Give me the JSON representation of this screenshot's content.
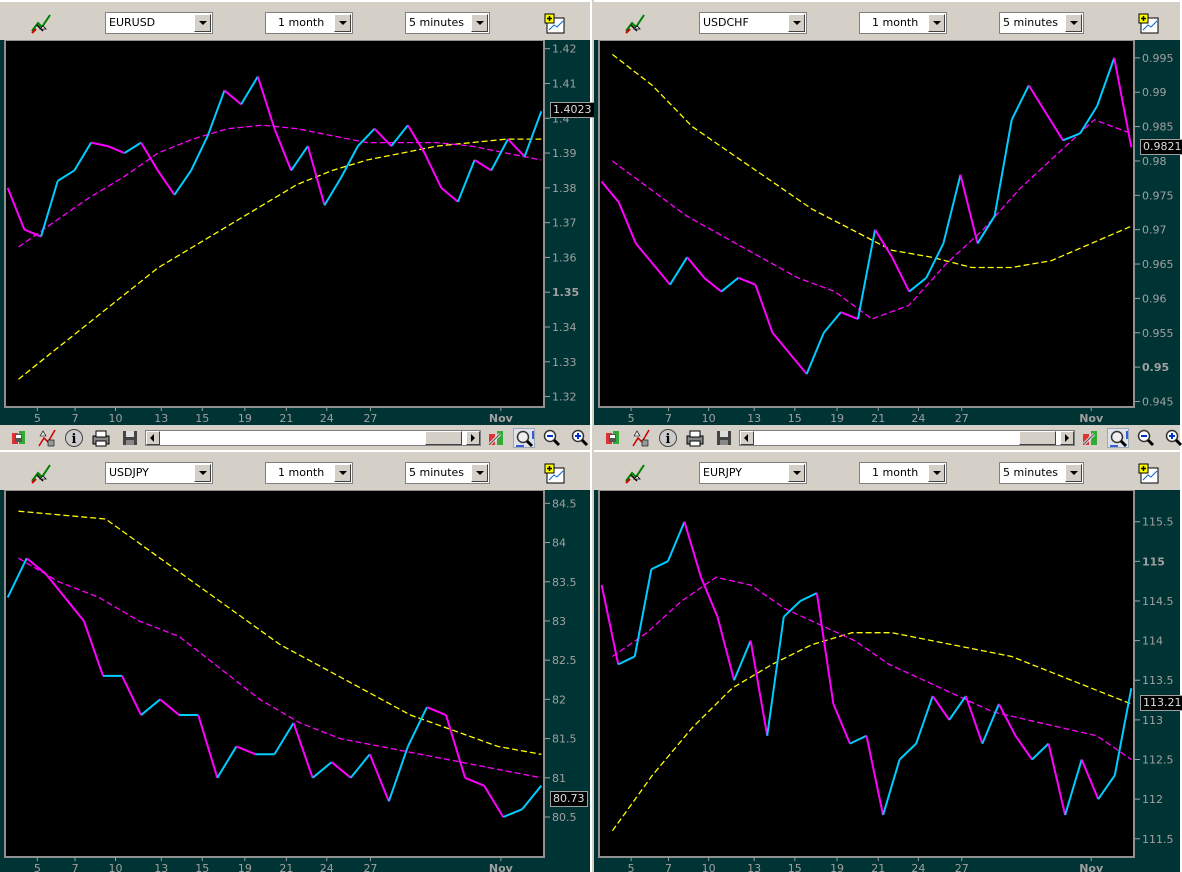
{
  "colors": {
    "background": "#003333",
    "plot": "#000000",
    "price_up": "#00ccff",
    "price_down": "#ff00ff",
    "ma_fast": "#ff00ff",
    "ma_slow": "#ffff00",
    "axis_text": "#a0a0a0"
  },
  "toolbar_icons": {
    "top": [
      "chart-wand-icon",
      "add-chart-icon"
    ],
    "bottom": [
      "candlestick-chart-icon",
      "indicators-icon",
      "info-icon",
      "print-icon",
      "save-icon",
      "properties-icon",
      "zoom-fit-icon",
      "zoom-out-icon",
      "zoom-in-icon"
    ]
  },
  "panels": [
    {
      "symbol": "EURUSD",
      "period": "1 month",
      "interval": "5 minutes",
      "last_price": "1.4023"
    },
    {
      "symbol": "USDCHF",
      "period": "1 month",
      "interval": "5 minutes",
      "last_price": "0.9821"
    },
    {
      "symbol": "USDJPY",
      "period": "1 month",
      "interval": "5 minutes",
      "last_price": "80.73"
    },
    {
      "symbol": "EURJPY",
      "period": "1 month",
      "interval": "5 minutes",
      "last_price": "113.21"
    }
  ],
  "chart_data": [
    {
      "type": "line",
      "title": "EURUSD",
      "x_tick_labels": [
        "5",
        "7",
        "10",
        "13",
        "15",
        "19",
        "21",
        "24",
        "27",
        "Nov"
      ],
      "ylim": [
        1.317,
        1.4225
      ],
      "y_ticks": [
        "1.32",
        "1.33",
        "1.34",
        "1.35",
        "1.36",
        "1.37",
        "1.38",
        "1.39",
        "1.4",
        "1.41",
        "1.42"
      ],
      "bold_tick": "1.35",
      "last": 1.4023,
      "price": [
        1.38,
        1.368,
        1.366,
        1.382,
        1.385,
        1.393,
        1.392,
        1.39,
        1.393,
        1.385,
        1.378,
        1.385,
        1.395,
        1.408,
        1.404,
        1.412,
        1.397,
        1.385,
        1.392,
        1.375,
        1.383,
        1.392,
        1.397,
        1.392,
        1.398,
        1.39,
        1.38,
        1.376,
        1.388,
        1.385,
        1.394,
        1.389,
        1.402
      ],
      "ma_fast": [
        1.363,
        1.37,
        1.377,
        1.383,
        1.39,
        1.394,
        1.397,
        1.398,
        1.397,
        1.395,
        1.393,
        1.393,
        1.393,
        1.392,
        1.39,
        1.388
      ],
      "ma_slow": [
        1.325,
        1.333,
        1.341,
        1.349,
        1.357,
        1.363,
        1.369,
        1.375,
        1.381,
        1.385,
        1.388,
        1.39,
        1.392,
        1.393,
        1.394,
        1.394
      ]
    },
    {
      "type": "line",
      "title": "USDCHF",
      "x_tick_labels": [
        "5",
        "7",
        "10",
        "13",
        "15",
        "19",
        "21",
        "24",
        "27",
        "Nov"
      ],
      "ylim": [
        0.9442,
        0.9976
      ],
      "y_ticks": [
        "0.945",
        "0.95",
        "0.955",
        "0.96",
        "0.965",
        "0.97",
        "0.975",
        "0.98",
        "0.985",
        "0.99",
        "0.995"
      ],
      "bold_tick": "0.95",
      "last": 0.9821,
      "price": [
        0.977,
        0.974,
        0.968,
        0.965,
        0.962,
        0.966,
        0.963,
        0.961,
        0.963,
        0.962,
        0.955,
        0.952,
        0.949,
        0.955,
        0.958,
        0.957,
        0.97,
        0.966,
        0.961,
        0.963,
        0.968,
        0.978,
        0.968,
        0.972,
        0.986,
        0.991,
        0.987,
        0.983,
        0.984,
        0.988,
        0.995,
        0.982
      ],
      "ma_fast": [
        0.98,
        0.976,
        0.972,
        0.969,
        0.966,
        0.963,
        0.961,
        0.957,
        0.959,
        0.965,
        0.97,
        0.976,
        0.981,
        0.986,
        0.984
      ],
      "ma_slow": [
        0.9955,
        0.991,
        0.985,
        0.981,
        0.977,
        0.973,
        0.97,
        0.967,
        0.966,
        0.9645,
        0.9645,
        0.9655,
        0.968,
        0.9705
      ]
    },
    {
      "type": "line",
      "title": "USDJPY",
      "x_tick_labels": [
        "5",
        "7",
        "10",
        "13",
        "15",
        "19",
        "21",
        "24",
        "27",
        "Nov"
      ],
      "ylim": [
        79.99,
        84.67
      ],
      "y_ticks": [
        "80.5",
        "81",
        "81.5",
        "82",
        "82.5",
        "83",
        "83.5",
        "84",
        "84.5"
      ],
      "bold_tick": "",
      "last": 80.73,
      "price": [
        83.3,
        83.8,
        83.6,
        83.3,
        83.0,
        82.3,
        82.3,
        81.8,
        82.0,
        81.8,
        81.8,
        81.0,
        81.4,
        81.3,
        81.3,
        81.7,
        81.0,
        81.2,
        81.0,
        81.3,
        80.7,
        81.4,
        81.9,
        81.8,
        81.0,
        80.9,
        80.5,
        80.6,
        80.9
      ],
      "ma_fast": [
        83.8,
        83.5,
        83.3,
        83.0,
        82.8,
        82.4,
        82.0,
        81.7,
        81.5,
        81.4,
        81.3,
        81.2,
        81.1,
        81.0
      ],
      "ma_slow": [
        84.4,
        84.35,
        84.3,
        83.9,
        83.5,
        83.1,
        82.7,
        82.4,
        82.1,
        81.8,
        81.6,
        81.4,
        81.3
      ]
    },
    {
      "type": "line",
      "title": "EURJPY",
      "x_tick_labels": [
        "5",
        "7",
        "10",
        "13",
        "15",
        "19",
        "21",
        "24",
        "27",
        "Nov"
      ],
      "ylim": [
        111.27,
        115.9
      ],
      "y_ticks": [
        "111.5",
        "112",
        "112.5",
        "113",
        "113.5",
        "114",
        "114.5",
        "115",
        "115.5"
      ],
      "bold_tick": "115",
      "last": 113.21,
      "price": [
        114.7,
        113.7,
        113.8,
        114.9,
        115.0,
        115.5,
        114.8,
        114.3,
        113.5,
        114.0,
        112.8,
        114.3,
        114.5,
        114.6,
        113.2,
        112.7,
        112.8,
        111.8,
        112.5,
        112.7,
        113.3,
        113.0,
        113.3,
        112.7,
        113.2,
        112.8,
        112.5,
        112.7,
        111.8,
        112.5,
        112.0,
        112.3,
        113.4
      ],
      "ma_fast": [
        113.8,
        114.1,
        114.5,
        114.8,
        114.7,
        114.4,
        114.2,
        114.0,
        113.7,
        113.5,
        113.3,
        113.1,
        113.0,
        112.9,
        112.8,
        112.5
      ],
      "ma_slow": [
        111.6,
        112.3,
        112.9,
        113.4,
        113.7,
        113.95,
        114.1,
        114.1,
        114.0,
        113.9,
        113.8,
        113.6,
        113.4,
        113.2
      ]
    }
  ]
}
